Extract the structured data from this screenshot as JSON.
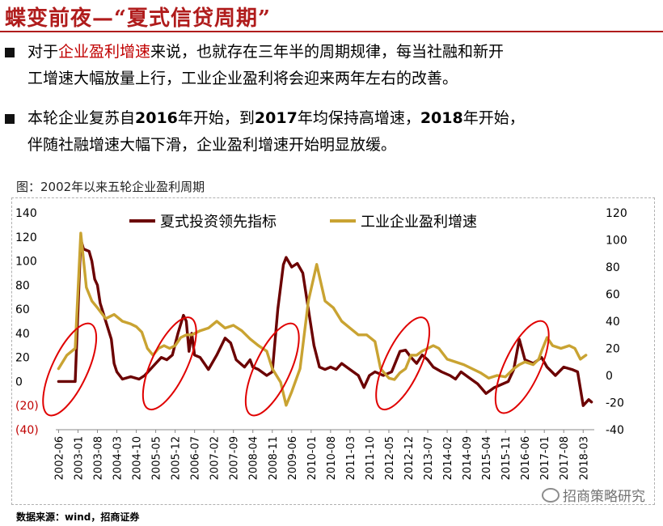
{
  "header": {
    "title": "蝶变前夜—“夏式信贷周期”"
  },
  "bullets": [
    {
      "lines": [
        [
          {
            "t": "对于"
          },
          {
            "t": "企业盈利增速",
            "hl": true
          },
          {
            "t": "来说，也就存在三年半的周期规律，每当社融和新开"
          }
        ],
        [
          {
            "t": "工增速大幅放量上行，工业企业盈利将会迎来两年左右的改善。"
          }
        ]
      ]
    },
    {
      "lines": [
        [
          {
            "t": "本轮企业复苏自"
          },
          {
            "t": "2016",
            "yr": true
          },
          {
            "t": "年开始，到"
          },
          {
            "t": "2017",
            "yr": true
          },
          {
            "t": "年均保持高增速，"
          },
          {
            "t": "2018",
            "yr": true
          },
          {
            "t": "年开始，"
          }
        ],
        [
          {
            "t": "伴随社融增速大幅下滑，企业盈利增速开始明显放缓。"
          }
        ]
      ]
    }
  ],
  "figure": {
    "caption": "图：2002年以来五轮企业盈利周期"
  },
  "source": "数据来源：wind，招商证券",
  "watermark": "招商策略研究",
  "colors": {
    "title": "#b01c1c",
    "series_xia": "#6b0000",
    "series_profit": "#c9a332",
    "ellipse": "#e00000"
  },
  "chart_data": {
    "type": "line",
    "legend": [
      "夏式投资领先指标",
      "工业企业盈利增速"
    ],
    "legend_position": "top",
    "x_tick_labels": [
      "2002-06",
      "2003-01",
      "2003-08",
      "2004-03",
      "2004-10",
      "2005-05",
      "2005-12",
      "2006-07",
      "2007-02",
      "2007-09",
      "2008-04",
      "2008-11",
      "2009-06",
      "2010-01",
      "2010-08",
      "2011-03",
      "2011-10",
      "2012-05",
      "2012-12",
      "2013-07",
      "2014-02",
      "2014-09",
      "2015-04",
      "2015-11",
      "2016-06",
      "2017-01",
      "2017-08",
      "2018-03"
    ],
    "y_left": {
      "range": [
        -40,
        140
      ],
      "tick_labels": [
        "(40)",
        "(20)",
        "0",
        "20",
        "40",
        "60",
        "80",
        "100",
        "120",
        "140"
      ],
      "tick_values": [
        -40,
        -20,
        0,
        20,
        40,
        60,
        80,
        100,
        120,
        140
      ]
    },
    "y_right": {
      "range": [
        -40,
        120
      ],
      "tick_labels": [
        "-40",
        "-20",
        "0",
        "20",
        "40",
        "60",
        "80",
        "100",
        "120"
      ],
      "tick_values": [
        -40,
        -20,
        0,
        20,
        40,
        60,
        80,
        100,
        120
      ]
    },
    "grid": false,
    "series": [
      {
        "name": "夏式投资领先指标",
        "axis": "left",
        "points": [
          [
            "2002-06",
            0
          ],
          [
            "2002-10",
            0
          ],
          [
            "2002-12",
            0
          ],
          [
            "2003-01",
            60
          ],
          [
            "2003-02",
            118
          ],
          [
            "2003-03",
            110
          ],
          [
            "2003-05",
            108
          ],
          [
            "2003-06",
            100
          ],
          [
            "2003-07",
            85
          ],
          [
            "2003-08",
            80
          ],
          [
            "2003-09",
            65
          ],
          [
            "2003-11",
            50
          ],
          [
            "2004-01",
            35
          ],
          [
            "2004-02",
            15
          ],
          [
            "2004-03",
            8
          ],
          [
            "2004-05",
            2
          ],
          [
            "2004-08",
            4
          ],
          [
            "2004-11",
            2
          ],
          [
            "2005-01",
            5
          ],
          [
            "2005-03",
            10
          ],
          [
            "2005-05",
            15
          ],
          [
            "2005-07",
            20
          ],
          [
            "2005-09",
            18
          ],
          [
            "2005-11",
            22
          ],
          [
            "2006-01",
            40
          ],
          [
            "2006-03",
            55
          ],
          [
            "2006-04",
            50
          ],
          [
            "2006-05",
            25
          ],
          [
            "2006-06",
            40
          ],
          [
            "2006-07",
            22
          ],
          [
            "2006-09",
            20
          ],
          [
            "2006-12",
            10
          ],
          [
            "2007-03",
            22
          ],
          [
            "2007-06",
            36
          ],
          [
            "2007-08",
            32
          ],
          [
            "2007-10",
            18
          ],
          [
            "2008-01",
            12
          ],
          [
            "2008-03",
            18
          ],
          [
            "2008-04",
            12
          ],
          [
            "2008-06",
            10
          ],
          [
            "2008-09",
            5
          ],
          [
            "2008-11",
            8
          ],
          [
            "2009-01",
            60
          ],
          [
            "2009-03",
            97
          ],
          [
            "2009-04",
            103
          ],
          [
            "2009-06",
            95
          ],
          [
            "2009-08",
            98
          ],
          [
            "2009-10",
            90
          ],
          [
            "2009-12",
            60
          ],
          [
            "2010-02",
            30
          ],
          [
            "2010-04",
            12
          ],
          [
            "2010-06",
            10
          ],
          [
            "2010-08",
            12
          ],
          [
            "2010-10",
            10
          ],
          [
            "2010-12",
            15
          ],
          [
            "2011-03",
            10
          ],
          [
            "2011-06",
            5
          ],
          [
            "2011-08",
            -5
          ],
          [
            "2011-10",
            5
          ],
          [
            "2011-12",
            8
          ],
          [
            "2012-03",
            5
          ],
          [
            "2012-06",
            8
          ],
          [
            "2012-09",
            25
          ],
          [
            "2012-11",
            26
          ],
          [
            "2013-01",
            20
          ],
          [
            "2013-03",
            15
          ],
          [
            "2013-05",
            22
          ],
          [
            "2013-07",
            18
          ],
          [
            "2013-09",
            12
          ],
          [
            "2013-12",
            8
          ],
          [
            "2014-03",
            5
          ],
          [
            "2014-05",
            2
          ],
          [
            "2014-07",
            8
          ],
          [
            "2014-10",
            3
          ],
          [
            "2015-01",
            -2
          ],
          [
            "2015-04",
            -10
          ],
          [
            "2015-07",
            -5
          ],
          [
            "2015-10",
            -2
          ],
          [
            "2015-12",
            0
          ],
          [
            "2016-02",
            10
          ],
          [
            "2016-04",
            35
          ],
          [
            "2016-06",
            18
          ],
          [
            "2016-09",
            15
          ],
          [
            "2016-12",
            20
          ],
          [
            "2017-02",
            12
          ],
          [
            "2017-05",
            5
          ],
          [
            "2017-08",
            12
          ],
          [
            "2017-11",
            10
          ],
          [
            "2018-01",
            8
          ],
          [
            "2018-03",
            -20
          ],
          [
            "2018-05",
            -15
          ],
          [
            "2018-06",
            -17
          ]
        ]
      },
      {
        "name": "工业企业盈利增速",
        "axis": "right",
        "points": [
          [
            "2002-06",
            5
          ],
          [
            "2002-09",
            15
          ],
          [
            "2002-12",
            20
          ],
          [
            "2003-02",
            105
          ],
          [
            "2003-04",
            65
          ],
          [
            "2003-06",
            55
          ],
          [
            "2003-08",
            50
          ],
          [
            "2003-11",
            42
          ],
          [
            "2004-02",
            45
          ],
          [
            "2004-05",
            40
          ],
          [
            "2004-08",
            38
          ],
          [
            "2004-10",
            36
          ],
          [
            "2004-12",
            32
          ],
          [
            "2005-02",
            20
          ],
          [
            "2005-04",
            15
          ],
          [
            "2005-06",
            20
          ],
          [
            "2005-08",
            22
          ],
          [
            "2005-10",
            20
          ],
          [
            "2005-12",
            22
          ],
          [
            "2006-02",
            28
          ],
          [
            "2006-04",
            30
          ],
          [
            "2006-06",
            30
          ],
          [
            "2006-09",
            33
          ],
          [
            "2006-12",
            35
          ],
          [
            "2007-03",
            40
          ],
          [
            "2007-06",
            35
          ],
          [
            "2007-09",
            37
          ],
          [
            "2007-12",
            33
          ],
          [
            "2008-03",
            27
          ],
          [
            "2008-06",
            22
          ],
          [
            "2008-09",
            18
          ],
          [
            "2008-11",
            5
          ],
          [
            "2009-02",
            -5
          ],
          [
            "2009-04",
            -22
          ],
          [
            "2009-06",
            -12
          ],
          [
            "2009-09",
            5
          ],
          [
            "2009-12",
            55
          ],
          [
            "2010-03",
            82
          ],
          [
            "2010-06",
            55
          ],
          [
            "2010-09",
            50
          ],
          [
            "2010-12",
            40
          ],
          [
            "2011-03",
            35
          ],
          [
            "2011-06",
            30
          ],
          [
            "2011-09",
            30
          ],
          [
            "2011-12",
            25
          ],
          [
            "2012-02",
            5
          ],
          [
            "2012-05",
            -2
          ],
          [
            "2012-07",
            -3
          ],
          [
            "2012-09",
            2
          ],
          [
            "2012-11",
            5
          ],
          [
            "2013-01",
            15
          ],
          [
            "2013-03",
            15
          ],
          [
            "2013-05",
            18
          ],
          [
            "2013-07",
            20
          ],
          [
            "2013-09",
            22
          ],
          [
            "2013-11",
            20
          ],
          [
            "2014-02",
            12
          ],
          [
            "2014-05",
            10
          ],
          [
            "2014-08",
            8
          ],
          [
            "2014-11",
            5
          ],
          [
            "2015-02",
            2
          ],
          [
            "2015-05",
            -2
          ],
          [
            "2015-08",
            0
          ],
          [
            "2015-11",
            -1
          ],
          [
            "2016-02",
            5
          ],
          [
            "2016-04",
            8
          ],
          [
            "2016-06",
            10
          ],
          [
            "2016-09",
            8
          ],
          [
            "2016-11",
            12
          ],
          [
            "2016-12",
            18
          ],
          [
            "2017-02",
            28
          ],
          [
            "2017-04",
            22
          ],
          [
            "2017-07",
            20
          ],
          [
            "2017-10",
            22
          ],
          [
            "2017-12",
            20
          ],
          [
            "2018-02",
            12
          ],
          [
            "2018-04",
            15
          ]
        ]
      }
    ],
    "highlights": [
      {
        "label": "2002-2003",
        "center": [
          "2002-10",
          10
        ],
        "axis": "left"
      },
      {
        "label": "2005-2006",
        "center": [
          "2005-10",
          15
        ],
        "axis": "left"
      },
      {
        "label": "2008-2009",
        "center": [
          "2008-11",
          10
        ],
        "axis": "left"
      },
      {
        "label": "2012-2013",
        "center": [
          "2012-10",
          15
        ],
        "axis": "left"
      },
      {
        "label": "2016",
        "center": [
          "2016-05",
          12
        ],
        "axis": "left"
      }
    ]
  }
}
